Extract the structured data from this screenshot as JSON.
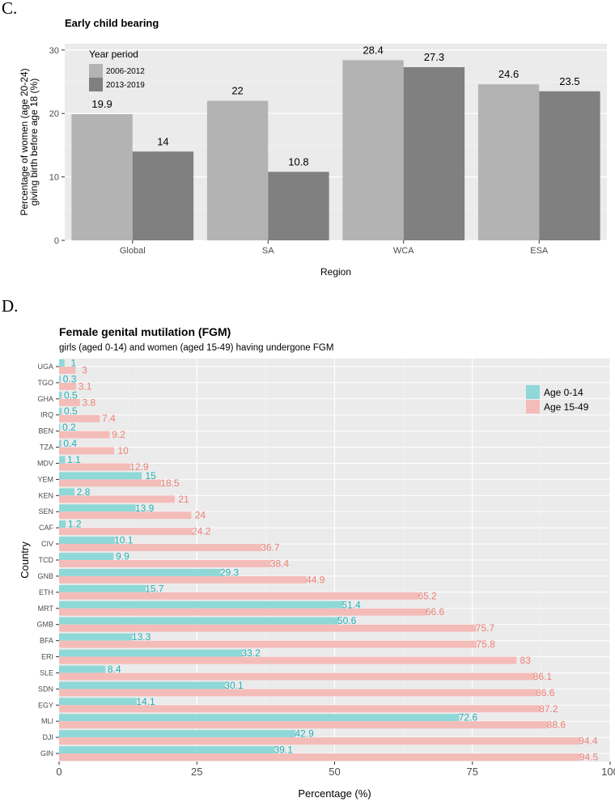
{
  "panels": {
    "c_label": "C.",
    "d_label": "D."
  },
  "chart_data": [
    {
      "type": "bar",
      "title": "Early child bearing",
      "xlabel": "Region",
      "ylabel": "Percentage of women (age 20-24) giving birth before age 18 (%)",
      "categories": [
        "Global",
        "SA",
        "WCA",
        "ESA"
      ],
      "ylim": [
        0,
        31
      ],
      "yticks": [
        0,
        10,
        20,
        30
      ],
      "legend": {
        "title": "Year period",
        "position": "top-left"
      },
      "series": [
        {
          "name": "2006-2012",
          "color": "#b3b3b3",
          "values": [
            19.9,
            22,
            28.4,
            24.6
          ],
          "labels": [
            "19.9",
            "22",
            "28.4",
            "24.6"
          ]
        },
        {
          "name": "2013-2019",
          "color": "#808080",
          "values": [
            14,
            10.8,
            27.3,
            23.5
          ],
          "labels": [
            "14",
            "10.8",
            "27.3",
            "23.5"
          ]
        }
      ]
    },
    {
      "type": "bar",
      "orientation": "horizontal",
      "title": "Female genital mutilation (FGM)",
      "subtitle": "girls (aged 0-14) and women (aged 15-49) having undergone FGM",
      "xlabel": "Percentage (%)",
      "ylabel": "Country",
      "xlim": [
        0,
        100
      ],
      "xticks": [
        0,
        25,
        50,
        75,
        100
      ],
      "legend": {
        "title": "",
        "position": "top-right"
      },
      "categories": [
        "UGA",
        "TGO",
        "GHA",
        "IRQ",
        "BEN",
        "TZA",
        "MDV",
        "YEM",
        "KEN",
        "SEN",
        "CAF",
        "CIV",
        "TCD",
        "GNB",
        "ETH",
        "MRT",
        "GMB",
        "BFA",
        "ERI",
        "SLE",
        "SDN",
        "EGY",
        "MLI",
        "DJI",
        "GIN"
      ],
      "series": [
        {
          "name": "Age 0-14",
          "color": "#8fd8d8",
          "label_color": "#1fb3b8",
          "values": [
            1,
            0.3,
            0.5,
            0.5,
            0.2,
            0.4,
            1.1,
            15,
            2.8,
            13.9,
            1.2,
            10.1,
            9.9,
            29.3,
            15.7,
            51.4,
            50.6,
            13.3,
            33.2,
            8.4,
            30.1,
            14.1,
            72.6,
            42.9,
            39.1
          ],
          "labels": [
            "1",
            "0.3",
            "0.5",
            "0.5",
            "0.2",
            "0.4",
            "1.1",
            "15",
            "2.8",
            "13.9",
            "1.2",
            "10.1",
            "9.9",
            "29.3",
            "15.7",
            "51.4",
            "50.6",
            "13.3",
            "33.2",
            "8.4",
            "30.1",
            "14.1",
            "72.6",
            "42.9",
            "39.1"
          ]
        },
        {
          "name": "Age 15-49",
          "color": "#f4bcb8",
          "label_color": "#f07e74",
          "values": [
            3,
            3.1,
            3.8,
            7.4,
            9.2,
            10,
            12.9,
            18.5,
            21,
            24,
            24.2,
            36.7,
            38.4,
            44.9,
            65.2,
            66.6,
            75.7,
            75.8,
            83,
            86.1,
            86.6,
            87.2,
            88.6,
            94.4,
            94.5
          ],
          "labels": [
            "3",
            "3.1",
            "3.8",
            "7.4",
            "9.2",
            "10",
            "12.9",
            "18.5",
            "21",
            "24",
            "24.2",
            "36.7",
            "38.4",
            "44.9",
            "65.2",
            "66.6",
            "75.7",
            "75.8",
            "83",
            "86.1",
            "86.6",
            "87.2",
            "88.6",
            "94.4",
            "94.5"
          ]
        }
      ]
    }
  ]
}
